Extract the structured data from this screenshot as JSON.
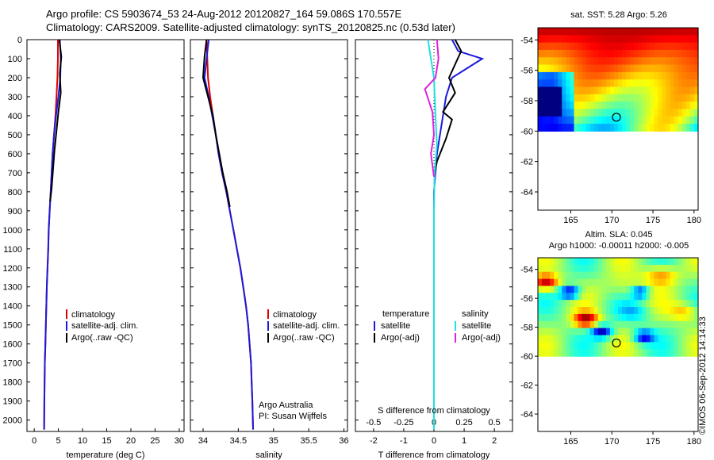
{
  "header": {
    "line1": "Argo profile: CS 5903674_53 24-Aug-2012 20120827_164 59.086S 170.557E",
    "line2": "Climatology: CARS2009. Satellite-adjusted climatology: synTS_20120825.nc (0.53d later)"
  },
  "colors": {
    "climatology": "#e00000",
    "satellite": "#1a1adc",
    "argo": "#000000",
    "sat_diff_T": "#1a1adc",
    "sat_diff_S": "#20e0e0",
    "argo_diff_S": "#e020e0"
  },
  "depth_ticks": [
    "0",
    "100",
    "200",
    "300",
    "400",
    "500",
    "600",
    "700",
    "800",
    "900",
    "1000",
    "1100",
    "1200",
    "1300",
    "1400",
    "1500",
    "1600",
    "1700",
    "1800",
    "1900",
    "2000"
  ],
  "chart_data": [
    {
      "type": "line",
      "id": "temperature",
      "xlabel": "temperature (deg C)",
      "ylabel": "",
      "xlim": [
        -1.5,
        31
      ],
      "ylim": [
        2060,
        0
      ],
      "xticks": [
        "0",
        "5",
        "10",
        "15",
        "20",
        "25",
        "30"
      ],
      "xtick_values": [
        0,
        5,
        10,
        15,
        20,
        25,
        30
      ],
      "legend": [
        "climatology",
        "satellite-adj. clim.",
        "Argo(..raw -QC)"
      ],
      "series": [
        {
          "name": "climatology",
          "color": "climatology",
          "x": [
            4.9,
            4.9,
            4.8,
            4.6,
            4.4,
            4.1,
            3.8,
            3.6,
            3.4,
            3.2,
            3.0,
            2.9,
            2.75,
            2.6,
            2.5,
            2.4,
            2.3,
            2.2,
            2.15,
            2.1,
            2.05
          ],
          "y": [
            0,
            100,
            200,
            300,
            400,
            500,
            600,
            700,
            800,
            900,
            1000,
            1100,
            1200,
            1300,
            1400,
            1500,
            1600,
            1700,
            1800,
            1900,
            2050
          ]
        },
        {
          "name": "satellite-adj. clim.",
          "color": "satellite",
          "x": [
            5.3,
            5.5,
            5.4,
            5.0,
            4.5,
            4.1,
            3.8,
            3.6,
            3.4,
            3.2,
            3.0,
            2.9,
            2.75,
            2.6,
            2.5,
            2.4,
            2.3,
            2.2,
            2.15,
            2.1,
            2.05
          ],
          "y": [
            0,
            100,
            200,
            300,
            400,
            500,
            600,
            700,
            800,
            900,
            1000,
            1100,
            1200,
            1300,
            1400,
            1500,
            1600,
            1700,
            1800,
            1900,
            2050
          ]
        },
        {
          "name": "Argo(..raw -QC)",
          "color": "argo",
          "x": [
            5.2,
            5.6,
            5.3,
            5.5,
            5.0,
            4.6,
            4.2,
            3.9,
            3.6,
            3.3
          ],
          "y": [
            0,
            90,
            180,
            280,
            380,
            480,
            580,
            680,
            780,
            850
          ]
        }
      ]
    },
    {
      "type": "line",
      "id": "salinity",
      "xlabel": "salinity",
      "ylabel": "",
      "xlim": [
        33.82,
        36.05
      ],
      "ylim": [
        2060,
        0
      ],
      "xticks": [
        "34",
        "34.5",
        "35",
        "35.5",
        "36"
      ],
      "xtick_values": [
        34,
        34.5,
        35,
        35.5,
        36
      ],
      "legend": [
        "climatology",
        "satellite-adj. clim.",
        "Argo(..raw -QC)"
      ],
      "annotations": [
        "Argo Australia",
        "PI: Susan Wijffels"
      ],
      "series": [
        {
          "name": "climatology",
          "color": "climatology",
          "x": [
            34.05,
            34.06,
            34.07,
            34.1,
            34.14,
            34.18,
            34.22,
            34.27,
            34.33,
            34.38,
            34.43,
            34.48,
            34.53,
            34.57,
            34.61,
            34.64,
            34.66,
            34.68,
            34.69,
            34.7,
            34.71
          ],
          "y": [
            0,
            100,
            200,
            300,
            400,
            500,
            600,
            700,
            800,
            900,
            1000,
            1100,
            1200,
            1300,
            1400,
            1500,
            1600,
            1700,
            1800,
            1900,
            2050
          ]
        },
        {
          "name": "satellite-adj. clim.",
          "color": "satellite",
          "x": [
            34.08,
            34.05,
            34.02,
            34.08,
            34.13,
            34.18,
            34.22,
            34.27,
            34.33,
            34.38,
            34.43,
            34.48,
            34.53,
            34.57,
            34.61,
            34.64,
            34.66,
            34.68,
            34.69,
            34.7,
            34.71
          ],
          "y": [
            0,
            100,
            200,
            300,
            400,
            500,
            600,
            700,
            800,
            900,
            1000,
            1100,
            1200,
            1300,
            1400,
            1500,
            1600,
            1700,
            1800,
            1900,
            2050
          ]
        },
        {
          "name": "Argo(..raw -QC)",
          "color": "argo",
          "x": [
            34.05,
            34.02,
            34.0,
            34.07,
            34.14,
            34.18,
            34.23,
            34.28,
            34.34,
            34.38
          ],
          "y": [
            0,
            90,
            200,
            300,
            400,
            500,
            600,
            700,
            800,
            880
          ]
        }
      ]
    },
    {
      "type": "line",
      "id": "differences",
      "xlabel": "T difference from climatology",
      "top_label": "S difference from climatology",
      "xlim": [
        -2.6,
        2.6
      ],
      "ylim": [
        2060,
        0
      ],
      "xticks": [
        "-2",
        "-1",
        "0",
        "1",
        "2"
      ],
      "xtick_values": [
        -2,
        -1,
        0,
        1,
        2
      ],
      "top_ticks": [
        "-0.5",
        "-0.25",
        "0",
        "0.25",
        "0.5"
      ],
      "top_tick_values": [
        -0.5,
        -0.25,
        0,
        0.25,
        0.5
      ],
      "legend_groups": {
        "temperature": [
          "satellite",
          "Argo(-adj)"
        ],
        "salinity": [
          "satellite",
          "Argo(-adj)"
        ]
      },
      "series": [
        {
          "name": "satellite",
          "group": "temperature",
          "color": "sat_diff_T",
          "x": [
            0.6,
            0.8,
            1.6,
            0.6,
            0.4,
            0.3,
            0.2,
            0.1,
            0.05,
            0.0,
            0.0
          ],
          "y": [
            0,
            60,
            100,
            200,
            300,
            400,
            500,
            600,
            700,
            800,
            2050
          ]
        },
        {
          "name": "Argo(-adj)",
          "group": "temperature",
          "color": "argo",
          "x": [
            0.7,
            0.9,
            0.5,
            0.7,
            0.3,
            0.6,
            0.4,
            0.1,
            0.0
          ],
          "y": [
            0,
            60,
            200,
            280,
            380,
            420,
            520,
            640,
            720
          ]
        },
        {
          "name": "satellite",
          "group": "salinity",
          "color": "sat_diff_S",
          "x": [
            -0.2,
            0.0,
            0.05,
            0.1,
            0.02,
            0.0,
            0.0
          ],
          "y": [
            0,
            200,
            400,
            550,
            700,
            900,
            2050
          ]
        },
        {
          "name": "Argo(-adj)",
          "group": "salinity",
          "color": "argo_diff_S",
          "x": [
            0.1,
            0.15,
            0.05,
            -0.3,
            -0.05,
            0.0,
            -0.1,
            0.0
          ],
          "y": [
            0,
            100,
            200,
            260,
            380,
            500,
            600,
            720
          ]
        }
      ]
    }
  ],
  "maps": [
    {
      "id": "sst",
      "title": "sat. SST: 5.28 Argo: 5.26",
      "colorscale": "jet"
    },
    {
      "id": "sla",
      "title_line1": "Altim. SLA: 0.045",
      "title_line2": "Argo h1000: -0.00011 h2000: -0.005",
      "colorscale": "jet"
    }
  ],
  "map_axis": {
    "lat_ticks": [
      "-54",
      "-56",
      "-58",
      "-60",
      "-62",
      "-64"
    ],
    "lat_values": [
      -54,
      -56,
      -58,
      -60,
      -62,
      -64
    ],
    "lon_ticks": [
      "165",
      "170",
      "175",
      "180"
    ],
    "lon_values": [
      165,
      170,
      175,
      180
    ]
  },
  "float_marker": {
    "lat": -59.086,
    "lon": 170.557
  },
  "credit": "©IMOS 06-Sep-2012 14:14:33"
}
